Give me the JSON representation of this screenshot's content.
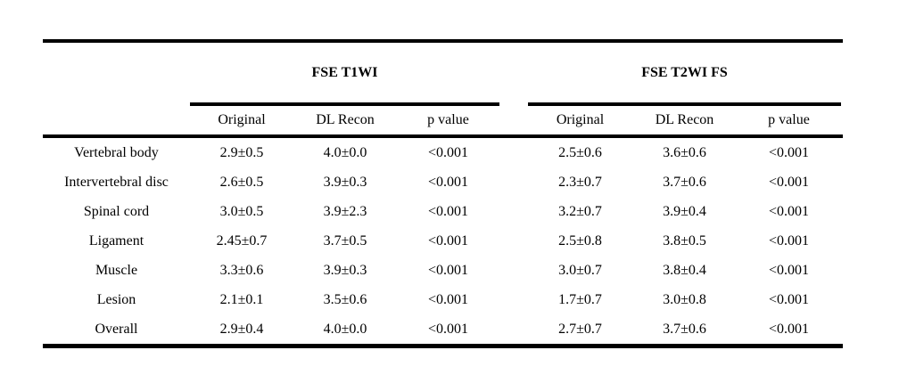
{
  "table": {
    "groups": [
      {
        "label": "FSE T1WI"
      },
      {
        "label": "FSE T2WI FS"
      }
    ],
    "columns": [
      "Original",
      "DL Recon",
      "p value"
    ],
    "rows": [
      {
        "label": "Vertebral body",
        "t1wi": {
          "original": "2.9±0.5",
          "dl_recon": "4.0±0.0",
          "p_value": "<0.001"
        },
        "t2wi_fs": {
          "original": "2.5±0.6",
          "dl_recon": "3.6±0.6",
          "p_value": "<0.001"
        }
      },
      {
        "label": "Intervertebral disc",
        "t1wi": {
          "original": "2.6±0.5",
          "dl_recon": "3.9±0.3",
          "p_value": "<0.001"
        },
        "t2wi_fs": {
          "original": "2.3±0.7",
          "dl_recon": "3.7±0.6",
          "p_value": "<0.001"
        }
      },
      {
        "label": "Spinal cord",
        "t1wi": {
          "original": "3.0±0.5",
          "dl_recon": "3.9±2.3",
          "p_value": "<0.001"
        },
        "t2wi_fs": {
          "original": "3.2±0.7",
          "dl_recon": "3.9±0.4",
          "p_value": "<0.001"
        }
      },
      {
        "label": "Ligament",
        "t1wi": {
          "original": "2.45±0.7",
          "dl_recon": "3.7±0.5",
          "p_value": "<0.001"
        },
        "t2wi_fs": {
          "original": "2.5±0.8",
          "dl_recon": "3.8±0.5",
          "p_value": "<0.001"
        }
      },
      {
        "label": "Muscle",
        "t1wi": {
          "original": "3.3±0.6",
          "dl_recon": "3.9±0.3",
          "p_value": "<0.001"
        },
        "t2wi_fs": {
          "original": "3.0±0.7",
          "dl_recon": "3.8±0.4",
          "p_value": "<0.001"
        }
      },
      {
        "label": "Lesion",
        "t1wi": {
          "original": "2.1±0.1",
          "dl_recon": "3.5±0.6",
          "p_value": "<0.001"
        },
        "t2wi_fs": {
          "original": "1.7±0.7",
          "dl_recon": "3.0±0.8",
          "p_value": "<0.001"
        }
      },
      {
        "label": "Overall",
        "t1wi": {
          "original": "2.9±0.4",
          "dl_recon": "4.0±0.0",
          "p_value": "<0.001"
        },
        "t2wi_fs": {
          "original": "2.7±0.7",
          "dl_recon": "3.7±0.6",
          "p_value": "<0.001"
        }
      }
    ],
    "colors": {
      "text": "#000000",
      "rule": "#000000",
      "background": "#ffffff"
    }
  },
  "chart_data": {
    "type": "table",
    "title": "",
    "column_groups": [
      "FSE T1WI",
      "FSE T2WI FS"
    ],
    "columns_per_group": [
      "Original",
      "DL Recon",
      "p value"
    ],
    "row_labels": [
      "Vertebral body",
      "Intervertebral disc",
      "Spinal cord",
      "Ligament",
      "Muscle",
      "Lesion",
      "Overall"
    ],
    "cells": [
      [
        "2.9±0.5",
        "4.0±0.0",
        "<0.001",
        "2.5±0.6",
        "3.6±0.6",
        "<0.001"
      ],
      [
        "2.6±0.5",
        "3.9±0.3",
        "<0.001",
        "2.3±0.7",
        "3.7±0.6",
        "<0.001"
      ],
      [
        "3.0±0.5",
        "3.9±2.3",
        "<0.001",
        "3.2±0.7",
        "3.9±0.4",
        "<0.001"
      ],
      [
        "2.45±0.7",
        "3.7±0.5",
        "<0.001",
        "2.5±0.8",
        "3.8±0.5",
        "<0.001"
      ],
      [
        "3.3±0.6",
        "3.9±0.3",
        "<0.001",
        "3.0±0.7",
        "3.8±0.4",
        "<0.001"
      ],
      [
        "2.1±0.1",
        "3.5±0.6",
        "<0.001",
        "1.7±0.7",
        "3.0±0.8",
        "<0.001"
      ],
      [
        "2.9±0.4",
        "4.0±0.0",
        "<0.001",
        "2.7±0.7",
        "3.7±0.6",
        "<0.001"
      ]
    ]
  }
}
